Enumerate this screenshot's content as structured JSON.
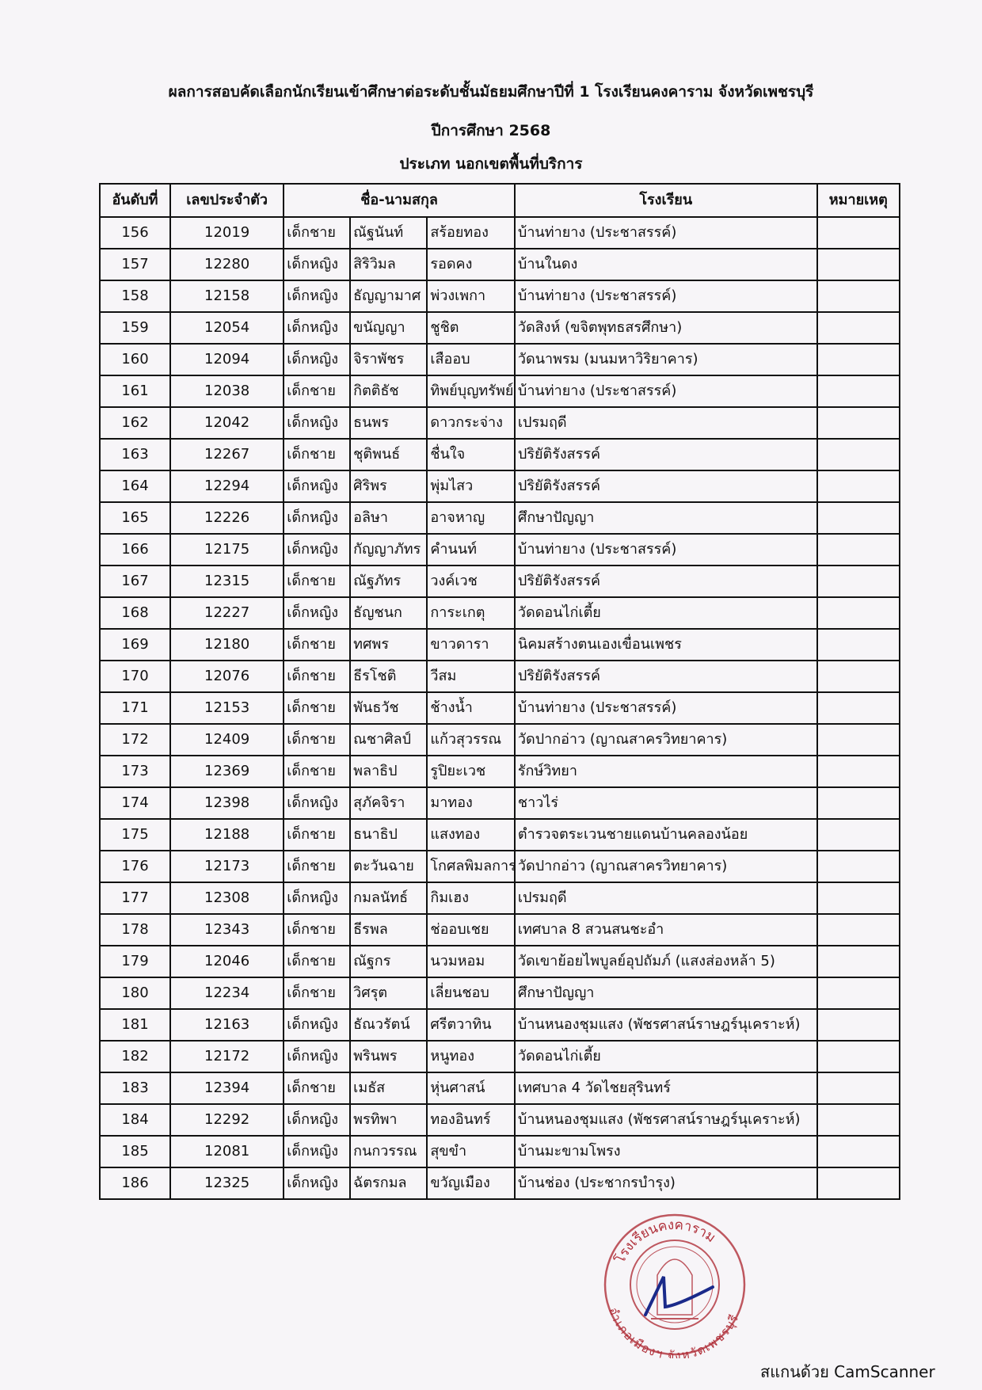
{
  "document": {
    "title": "ผลการสอบคัดเลือกนักเรียนเข้าศึกษาต่อระดับชั้นมัธยมศึกษาปีที่ 1 โรงเรียนคงคาราม จังหวัดเพชรบุรี",
    "academic_year": "ปีการศึกษา 2568",
    "category": "ประเภท นอกเขตพื้นที่บริการ"
  },
  "table": {
    "headers": [
      "อันดับที่",
      "เลขประจำตัว",
      "ชื่อ-นามสกุล",
      "โรงเรียน",
      "หมายเหตุ"
    ],
    "rows": [
      [
        "156",
        "12019",
        "เด็กชาย",
        "ณัฐนันท์",
        "สร้อยทอง",
        "บ้านท่ายาง (ประชาสรรค์)",
        ""
      ],
      [
        "157",
        "12280",
        "เด็กหญิง",
        "สิริวิมล",
        "รอดคง",
        "บ้านในดง",
        ""
      ],
      [
        "158",
        "12158",
        "เด็กหญิง",
        "ธัญญามาศ",
        "พ่วงเพกา",
        "บ้านท่ายาง (ประชาสรรค์)",
        ""
      ],
      [
        "159",
        "12054",
        "เด็กหญิง",
        "ขนัญญา",
        "ชูชิต",
        "วัดสิงห์ (ขจิตพุทธสรศึกษา)",
        ""
      ],
      [
        "160",
        "12094",
        "เด็กหญิง",
        "จิราพัชร",
        "เสืออบ",
        "วัดนาพรม (มนมหาวิริยาคาร)",
        ""
      ],
      [
        "161",
        "12038",
        "เด็กชาย",
        "กิตติธัช",
        "ทิพย์บุญทรัพย์",
        "บ้านท่ายาง (ประชาสรรค์)",
        ""
      ],
      [
        "162",
        "12042",
        "เด็กหญิง",
        "ธนพร",
        "ดาวกระจ่าง",
        "เปรมฤดี",
        ""
      ],
      [
        "163",
        "12267",
        "เด็กชาย",
        "ชุติพนธ์",
        "ชื่นใจ",
        "ปริยัติรังสรรค์",
        ""
      ],
      [
        "164",
        "12294",
        "เด็กหญิง",
        "ศิริพร",
        "พุ่มไสว",
        "ปริยัติรังสรรค์",
        ""
      ],
      [
        "165",
        "12226",
        "เด็กหญิง",
        "อลิษา",
        "อาจหาญ",
        "ศึกษาปัญญา",
        ""
      ],
      [
        "166",
        "12175",
        "เด็กหญิง",
        "กัญญาภัทร",
        "คำนนท์",
        "บ้านท่ายาง (ประชาสรรค์)",
        ""
      ],
      [
        "167",
        "12315",
        "เด็กชาย",
        "ณัฐภัทร",
        "วงค์เวช",
        "ปริยัติรังสรรค์",
        ""
      ],
      [
        "168",
        "12227",
        "เด็กหญิง",
        "ธัญชนก",
        "การะเกตุ",
        "วัดดอนไก่เตี้ย",
        ""
      ],
      [
        "169",
        "12180",
        "เด็กชาย",
        "ทศพร",
        "ขาวดารา",
        "นิคมสร้างตนเองเขื่อนเพชร",
        ""
      ],
      [
        "170",
        "12076",
        "เด็กชาย",
        "ธีรโชติ",
        "วีสม",
        "ปริยัติรังสรรค์",
        ""
      ],
      [
        "171",
        "12153",
        "เด็กชาย",
        "พันธวัช",
        "ช้างน้ำ",
        "บ้านท่ายาง (ประชาสรรค์)",
        ""
      ],
      [
        "172",
        "12409",
        "เด็กชาย",
        "ณชาศิลป์",
        "แก้วสุวรรณ",
        "วัดปากอ่าว (ญาณสาครวิทยาคาร)",
        ""
      ],
      [
        "173",
        "12369",
        "เด็กชาย",
        "พลาธิป",
        "รูปิยะเวช",
        "รักษ์วิทยา",
        ""
      ],
      [
        "174",
        "12398",
        "เด็กหญิง",
        "สุภัคจิรา",
        "มาทอง",
        "ชาวไร่",
        ""
      ],
      [
        "175",
        "12188",
        "เด็กชาย",
        "ธนาธิป",
        "แสงทอง",
        "ตำรวจตระเวนชายแดนบ้านคลองน้อย",
        ""
      ],
      [
        "176",
        "12173",
        "เด็กชาย",
        "ตะวันฉาย",
        "โกศลพิมลการ",
        "วัดปากอ่าว (ญาณสาครวิทยาคาร)",
        ""
      ],
      [
        "177",
        "12308",
        "เด็กหญิง",
        "กมลนัทธ์",
        "กิมเฮง",
        "เปรมฤดี",
        ""
      ],
      [
        "178",
        "12343",
        "เด็กชาย",
        "ธีรพล",
        "ช่ออบเชย",
        "เทศบาล 8 สวนสนชะอำ",
        ""
      ],
      [
        "179",
        "12046",
        "เด็กชาย",
        "ณัฐกร",
        "นวมหอม",
        "วัดเขาย้อยไพบูลย์อุปถัมภ์ (แสงส่องหล้า 5)",
        ""
      ],
      [
        "180",
        "12234",
        "เด็กชาย",
        "วิศรุต",
        "เลี่ยนชอบ",
        "ศึกษาปัญญา",
        ""
      ],
      [
        "181",
        "12163",
        "เด็กหญิง",
        "ธัณวรัตน์",
        "ศรีตวาทิน",
        "บ้านหนองชุมแสง (พัชรศาสน์ราษฎร์นุเคราะห์)",
        ""
      ],
      [
        "182",
        "12172",
        "เด็กหญิง",
        "พรินพร",
        "หนูทอง",
        "วัดดอนไก่เตี้ย",
        ""
      ],
      [
        "183",
        "12394",
        "เด็กชาย",
        "เมธัส",
        "หุ่นศาสน์",
        "เทศบาล 4 วัดไชยสุรินทร์",
        ""
      ],
      [
        "184",
        "12292",
        "เด็กหญิง",
        "พรทิพา",
        "ทองอินทร์",
        "บ้านหนองชุมแสง (พัชรศาสน์ราษฎร์นุเคราะห์)",
        ""
      ],
      [
        "185",
        "12081",
        "เด็กหญิง",
        "กนกวรรณ",
        "สุขขำ",
        "บ้านมะขามโพรง",
        ""
      ],
      [
        "186",
        "12325",
        "เด็กหญิง",
        "ฉัตรกมล",
        "ขวัญเมือง",
        "บ้านช่อง (ประชากรบำรุง)",
        ""
      ]
    ]
  },
  "stamp": {
    "top_text": "โรงเรียนคงคาราม",
    "bottom_text": "อำเภอเมืองฯ จังหวัดเพชรบุรี",
    "color": "#b0303a",
    "signature_color": "#1a2a8a"
  },
  "watermark": "สแกนด้วย CamScanner"
}
